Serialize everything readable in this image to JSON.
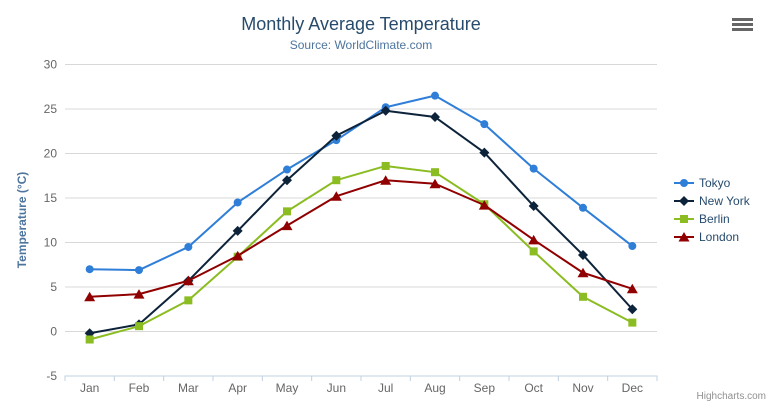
{
  "chart_data": {
    "type": "line",
    "title": "Monthly Average Temperature",
    "subtitle": "Source: WorldClimate.com",
    "categories": [
      "Jan",
      "Feb",
      "Mar",
      "Apr",
      "May",
      "Jun",
      "Jul",
      "Aug",
      "Sep",
      "Oct",
      "Nov",
      "Dec"
    ],
    "series": [
      {
        "name": "Tokyo",
        "color": "#2f7ed8",
        "marker": "circle",
        "values": [
          7.0,
          6.9,
          9.5,
          14.5,
          18.2,
          21.5,
          25.2,
          26.5,
          23.3,
          18.3,
          13.9,
          9.6
        ]
      },
      {
        "name": "New York",
        "color": "#0d233a",
        "marker": "diamond",
        "values": [
          -0.2,
          0.8,
          5.7,
          11.3,
          17.0,
          22.0,
          24.8,
          24.1,
          20.1,
          14.1,
          8.6,
          2.5
        ]
      },
      {
        "name": "Berlin",
        "color": "#8bbc21",
        "marker": "square",
        "values": [
          -0.9,
          0.6,
          3.5,
          8.4,
          13.5,
          17.0,
          18.6,
          17.9,
          14.3,
          9.0,
          3.9,
          1.0
        ]
      },
      {
        "name": "London",
        "color": "#910000",
        "marker": "triangle",
        "values": [
          3.9,
          4.2,
          5.7,
          8.5,
          11.9,
          15.2,
          17.0,
          16.6,
          14.2,
          10.3,
          6.6,
          4.8
        ]
      }
    ],
    "xlabel": "",
    "ylabel": "Temperature (°C)",
    "ylim": [
      -5,
      30
    ],
    "yticks": [
      -5,
      0,
      5,
      10,
      15,
      20,
      25,
      30
    ],
    "grid": true,
    "legend_position": "right"
  },
  "credits": {
    "label": "Highcharts.com"
  },
  "toolbar": {
    "menu_icon": "hamburger-icon"
  },
  "theme": {
    "title_color": "#274b6d",
    "subtitle_color": "#4d759e",
    "axis_label_color": "#666666",
    "axis_title_color": "#4d759e",
    "grid_color": "#d8d8d8",
    "axis_line_color": "#c0d0e0",
    "legend_text_color": "#274b6d",
    "credits_color": "#909090",
    "menu_icon_color": "#666666"
  }
}
